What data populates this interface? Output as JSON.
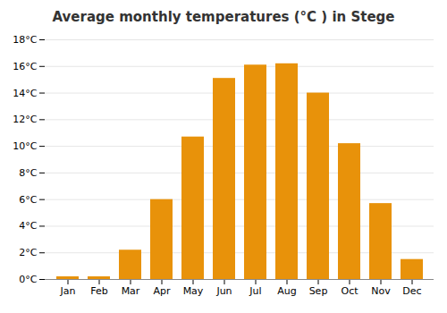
{
  "chart_data": {
    "type": "bar",
    "title": "Average monthly temperatures (°C ) in Stege",
    "categories": [
      "Jan",
      "Feb",
      "Mar",
      "Apr",
      "May",
      "Jun",
      "Jul",
      "Aug",
      "Sep",
      "Oct",
      "Nov",
      "Dec"
    ],
    "values": [
      0.2,
      0.2,
      2.2,
      6.0,
      10.7,
      15.1,
      16.1,
      16.2,
      14.0,
      10.2,
      5.7,
      1.5
    ],
    "color": "#E8920A",
    "ylim": [
      0,
      18
    ],
    "yticks": [
      {
        "value": 0,
        "label": "0°C"
      },
      {
        "value": 2,
        "label": "2°C"
      },
      {
        "value": 4,
        "label": "4°C"
      },
      {
        "value": 6,
        "label": "6°C"
      },
      {
        "value": 8,
        "label": "8°C"
      },
      {
        "value": 10,
        "label": "10°C"
      },
      {
        "value": 12,
        "label": "12°C"
      },
      {
        "value": 14,
        "label": "14°C"
      },
      {
        "value": 16,
        "label": "16°C"
      },
      {
        "value": 18,
        "label": "18°C"
      }
    ],
    "grid": true
  }
}
